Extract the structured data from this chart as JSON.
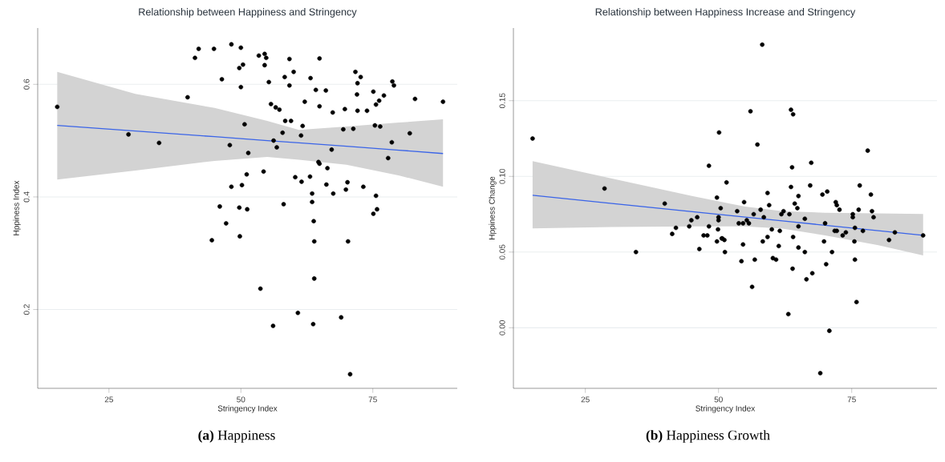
{
  "chart_data": [
    {
      "type": "scatter",
      "title": "Relationship between Happiness and Stringency",
      "xlabel": "Stringency Index",
      "ylabel": "Hppiness Index",
      "xlim": [
        11.5,
        91
      ],
      "ylim": [
        0.06,
        0.7
      ],
      "xticks": [
        25,
        50,
        75
      ],
      "yticks": [
        0.2,
        0.4,
        0.6
      ],
      "grid": "y",
      "marker": "circle",
      "annotations": [
        "**(a)** Happiness"
      ],
      "series": [
        {
          "color": "#000000",
          "x": [
            15.2,
            28.7,
            34.5,
            39.9,
            41.3,
            42.0,
            44.9,
            48.2,
            50.0,
            49.7,
            50.4,
            46.4,
            50.0,
            50.7,
            47.9,
            51.4,
            51.1,
            48.2,
            50.2,
            46.0,
            49.7,
            51.2,
            47.2,
            44.5,
            49.8,
            53.4,
            54.5,
            54.8,
            54.5,
            59.2,
            64.9,
            55.3,
            58.3,
            60.0,
            59.2,
            63.2,
            64.2,
            66.1,
            62.1,
            64.9,
            55.7,
            56.6,
            57.3,
            67.4,
            58.4,
            59.5,
            61.7,
            57.9,
            61.4,
            56.2,
            56.8,
            67.2,
            71.7,
            72.7,
            72.1,
            72.0,
            69.7,
            72.1,
            73.9,
            75.1,
            77.1,
            76.2,
            75.6,
            78.7,
            79.0,
            83.0,
            88.3,
            69.4,
            71.3,
            75.4,
            76.4,
            82.0,
            78.6,
            77.9,
            64.7,
            64.9,
            66.4,
            54.3,
            60.3,
            61.5,
            63.1,
            66.2,
            70.2,
            69.9,
            67.5,
            63.5,
            73.2,
            75.6,
            63.5,
            58.1,
            75.8,
            75.1,
            63.8,
            63.9,
            70.3,
            63.9,
            53.7,
            60.8,
            69.0,
            56.1,
            63.7,
            70.7
          ],
          "values": [
            0.56,
            0.511,
            0.496,
            0.577,
            0.647,
            0.663,
            0.663,
            0.671,
            0.665,
            0.629,
            0.635,
            0.609,
            0.595,
            0.529,
            0.492,
            0.478,
            0.44,
            0.418,
            0.421,
            0.383,
            0.381,
            0.378,
            0.353,
            0.323,
            0.33,
            0.651,
            0.654,
            0.647,
            0.634,
            0.645,
            0.646,
            0.604,
            0.613,
            0.622,
            0.598,
            0.611,
            0.59,
            0.589,
            0.569,
            0.561,
            0.565,
            0.559,
            0.555,
            0.55,
            0.535,
            0.535,
            0.526,
            0.514,
            0.509,
            0.5,
            0.488,
            0.484,
            0.622,
            0.613,
            0.602,
            0.582,
            0.556,
            0.553,
            0.553,
            0.587,
            0.58,
            0.571,
            0.564,
            0.605,
            0.598,
            0.574,
            0.569,
            0.52,
            0.521,
            0.527,
            0.525,
            0.513,
            0.497,
            0.469,
            0.462,
            0.459,
            0.451,
            0.445,
            0.435,
            0.427,
            0.436,
            0.422,
            0.426,
            0.413,
            0.406,
            0.406,
            0.418,
            0.402,
            0.391,
            0.387,
            0.378,
            0.37,
            0.357,
            0.321,
            0.321,
            0.255,
            0.237,
            0.194,
            0.186,
            0.171,
            0.174,
            0.085
          ]
        },
        {
          "type": "line",
          "marker": "none",
          "color": "#3a64e8",
          "line_style": "solid",
          "x": [
            15.2,
            30,
            45,
            55,
            61,
            70,
            80,
            88.3
          ],
          "values": [
            0.527,
            0.517,
            0.507,
            0.5,
            0.496,
            0.49,
            0.483,
            0.477
          ],
          "lower": [
            0.431,
            0.447,
            0.464,
            0.471,
            0.466,
            0.457,
            0.438,
            0.418
          ],
          "upper": [
            0.622,
            0.583,
            0.558,
            0.535,
            0.519,
            0.525,
            0.532,
            0.538
          ]
        }
      ]
    },
    {
      "type": "scatter",
      "title": "Relationship between Happiness Increase and Stringency",
      "xlabel": "Stringency Index",
      "ylabel": "Hppiness Change",
      "xlim": [
        11.5,
        91
      ],
      "ylim": [
        -0.04,
        0.198
      ],
      "xticks": [
        25,
        50,
        75
      ],
      "yticks": [
        {
          "value": 0,
          "label": "0.00"
        },
        0.05,
        {
          "value": 0.1,
          "label": "0.10"
        },
        0.15
      ],
      "grid": "y",
      "marker": "circle",
      "annotations": [
        "**(b)** Happiness Growth"
      ],
      "series": [
        {
          "color": "#000000",
          "x": [
            15.1,
            28.6,
            34.5,
            39.9,
            41.3,
            42.0,
            44.5,
            44.9,
            46.0,
            46.4,
            47.2,
            47.9,
            48.2,
            48.2,
            49.7,
            50.1,
            50.4,
            50.0,
            50.0,
            49.9,
            49.7,
            50.6,
            58.2,
            56.0,
            63.6,
            64.0,
            57.3,
            78.0,
            67.4,
            63.8,
            51.5,
            63.6,
            67.2,
            76.5,
            69.5,
            70.4,
            78.6,
            59.2,
            65.0,
            54.8,
            57.9,
            59.5,
            64.3,
            64.8,
            72.0,
            72.2,
            72.7,
            76.3,
            78.8,
            53.5,
            56.6,
            61.8,
            62.2,
            63.3,
            58.5,
            66.2,
            75.2,
            75.2,
            79.1,
            53.8,
            54.6,
            55.3,
            55.7,
            70.0,
            65.0,
            60.0,
            61.5,
            71.8,
            72.2,
            73.9,
            73.3,
            75.6,
            77.1,
            83.1,
            82.0,
            88.4,
            50.7,
            51.1,
            59.2,
            64.0,
            58.3,
            69.8,
            75.5,
            54.6,
            61.3,
            65.0,
            51.2,
            66.2,
            71.3,
            60.2,
            60.8,
            75.6,
            54.3,
            56.8,
            70.2,
            63.9,
            67.6,
            66.5,
            56.3,
            75.9,
            63.1,
            70.8,
            69.1
          ],
          "values": [
            0.125,
            0.092,
            0.05,
            0.082,
            0.062,
            0.066,
            0.067,
            0.071,
            0.073,
            0.052,
            0.061,
            0.061,
            0.107,
            0.067,
            0.086,
            0.129,
            0.079,
            0.073,
            0.071,
            0.065,
            0.057,
            0.059,
            0.187,
            0.143,
            0.144,
            0.141,
            0.121,
            0.117,
            0.109,
            0.106,
            0.096,
            0.093,
            0.094,
            0.094,
            0.088,
            0.09,
            0.088,
            0.089,
            0.087,
            0.083,
            0.078,
            0.081,
            0.082,
            0.079,
            0.083,
            0.081,
            0.078,
            0.078,
            0.077,
            0.077,
            0.075,
            0.075,
            0.077,
            0.075,
            0.073,
            0.072,
            0.075,
            0.073,
            0.073,
            0.069,
            0.069,
            0.071,
            0.069,
            0.069,
            0.067,
            0.065,
            0.064,
            0.064,
            0.064,
            0.063,
            0.061,
            0.066,
            0.064,
            0.063,
            0.058,
            0.061,
            0.059,
            0.058,
            0.06,
            0.06,
            0.057,
            0.057,
            0.057,
            0.055,
            0.054,
            0.053,
            0.05,
            0.05,
            0.05,
            0.046,
            0.045,
            0.045,
            0.044,
            0.045,
            0.042,
            0.039,
            0.036,
            0.032,
            0.027,
            0.017,
            0.009,
            -0.002,
            -0.03
          ]
        },
        {
          "type": "line",
          "marker": "none",
          "color": "#3a64e8",
          "line_style": "solid",
          "x": [
            15.1,
            30,
            45,
            55,
            62,
            70,
            80,
            88.4
          ],
          "values": [
            0.0875,
            0.0821,
            0.0767,
            0.0731,
            0.0706,
            0.0677,
            0.0641,
            0.0611
          ],
          "lower": [
            0.0657,
            0.0665,
            0.067,
            0.067,
            0.0655,
            0.061,
            0.0545,
            0.0478
          ],
          "upper": [
            0.11,
            0.0985,
            0.087,
            0.08,
            0.077,
            0.076,
            0.0755,
            0.0752
          ]
        }
      ]
    }
  ]
}
